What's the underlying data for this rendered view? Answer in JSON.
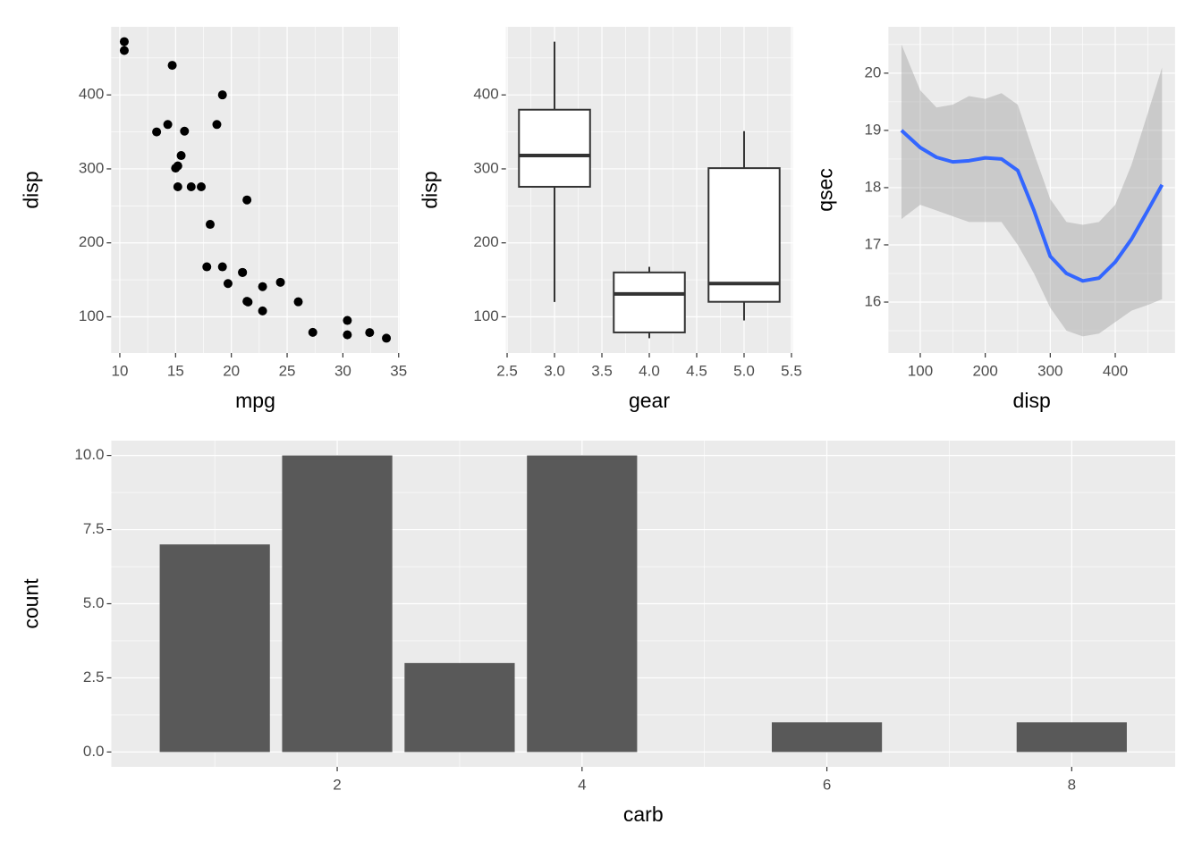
{
  "chart_data": [
    {
      "type": "scatter",
      "x_label": "mpg",
      "y_label": "disp",
      "color": "#000000",
      "x": [
        21,
        21,
        22.8,
        21.4,
        18.7,
        18.1,
        14.3,
        24.4,
        22.8,
        19.2,
        17.8,
        16.4,
        17.3,
        15.2,
        10.4,
        10.4,
        14.7,
        32.4,
        30.4,
        33.9,
        21.5,
        15.5,
        15.2,
        13.3,
        19.2,
        27.3,
        26,
        30.4,
        15.8,
        19.7,
        15,
        21.4
      ],
      "values": [
        160,
        160,
        108,
        258,
        360,
        225,
        360,
        146.7,
        140.8,
        167.6,
        167.6,
        275.8,
        275.8,
        275.8,
        472,
        460,
        440,
        78.7,
        75.7,
        71.1,
        120.1,
        318,
        304,
        350,
        400,
        79,
        120.3,
        95.1,
        351,
        145,
        301,
        121
      ],
      "xlim": [
        9.225,
        35.075
      ],
      "xticks": [
        10,
        15,
        20,
        25,
        30,
        35
      ],
      "ylim": [
        51.055,
        492.045
      ],
      "yticks": [
        100,
        200,
        300,
        400
      ],
      "grid": true
    },
    {
      "type": "boxplot",
      "x_label": "gear",
      "y_label": "disp",
      "color": "#333333",
      "x": [
        3,
        4,
        5
      ],
      "ymin": [
        120.1,
        71.1,
        95.1
      ],
      "lower": [
        275.8,
        78.925,
        120.3
      ],
      "middle": [
        318,
        130.9,
        145
      ],
      "upper": [
        380,
        160,
        301
      ],
      "ymax": [
        472,
        167.6,
        351
      ],
      "xlim": [
        2.4875,
        5.5125
      ],
      "xticks": [
        {
          "value": 2.5,
          "label": "2.5"
        },
        {
          "value": 3,
          "label": "3.0"
        },
        {
          "value": 3.5,
          "label": "3.5"
        },
        {
          "value": 4,
          "label": "4.0"
        },
        {
          "value": 4.5,
          "label": "4.5"
        },
        {
          "value": 5,
          "label": "5.0"
        },
        {
          "value": 5.5,
          "label": "5.5"
        }
      ],
      "ylim": [
        51.055,
        492.045
      ],
      "yticks": [
        100,
        200,
        300,
        400
      ],
      "grid": true
    },
    {
      "type": "smooth",
      "x_label": "disp",
      "y_label": "qsec",
      "color": "#3366ff",
      "ribbon_color": "#999999",
      "x": [
        71.1,
        100,
        125,
        150,
        175,
        200,
        225,
        250,
        275,
        300,
        325,
        350,
        375,
        400,
        425,
        450,
        472
      ],
      "values": [
        19.0,
        18.7,
        18.53,
        18.45,
        18.47,
        18.52,
        18.5,
        18.3,
        17.6,
        16.8,
        16.5,
        16.37,
        16.42,
        16.7,
        17.1,
        17.6,
        18.05
      ],
      "upper": [
        20.5,
        19.7,
        19.4,
        19.45,
        19.6,
        19.55,
        19.65,
        19.45,
        18.6,
        17.8,
        17.4,
        17.35,
        17.4,
        17.7,
        18.4,
        19.3,
        20.1
      ],
      "lower": [
        17.45,
        17.7,
        17.6,
        17.5,
        17.4,
        17.4,
        17.4,
        17.0,
        16.5,
        15.9,
        15.5,
        15.4,
        15.45,
        15.65,
        15.85,
        15.95,
        16.05
      ],
      "xlim": [
        51.055,
        492.045
      ],
      "xticks": [
        100,
        200,
        300,
        400
      ],
      "ylim": [
        15.11,
        20.81
      ],
      "yticks": [
        16,
        17,
        18,
        19,
        20
      ],
      "grid": true
    },
    {
      "type": "bar",
      "x_label": "carb",
      "y_label": "count",
      "color": "#595959",
      "x": [
        1,
        2,
        3,
        4,
        6,
        8
      ],
      "values": [
        7,
        10,
        3,
        10,
        1,
        1
      ],
      "xlim": [
        0.155,
        8.845
      ],
      "xticks": [
        2,
        4,
        6,
        8
      ],
      "ylim": [
        -0.5,
        10.5
      ],
      "yticks": [
        {
          "value": 0,
          "label": "0.0"
        },
        {
          "value": 2.5,
          "label": "2.5"
        },
        {
          "value": 5,
          "label": "5.0"
        },
        {
          "value": 7.5,
          "label": "7.5"
        },
        {
          "value": 10,
          "label": "10.0"
        }
      ],
      "grid": true
    }
  ]
}
